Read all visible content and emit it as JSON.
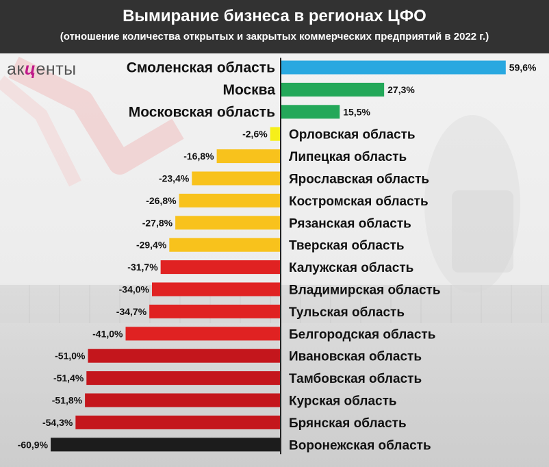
{
  "header": {
    "title": "Вымирание бизнеса в регионах ЦФО",
    "subtitle": "(отношение количества открытых и закрытых коммерческих предприятий в 2022 г.)"
  },
  "logo": {
    "pre": "ак",
    "accent": "ц",
    "post": "енты"
  },
  "colors": {
    "header_bg": "#323232",
    "blue": "#29a8e0",
    "green": "#23a859",
    "yellow": "#f6ef1a",
    "orange": "#f8c21c",
    "red": "#e02222",
    "dark_red": "#c4161c",
    "black": "#1c1c1c",
    "axis": "#222222"
  },
  "chart_data": {
    "type": "bar",
    "orientation": "horizontal",
    "title": "Вымирание бизнеса в регионах ЦФО",
    "subtitle": "(отношение количества открытых и закрытых коммерческих предприятий в 2022 г.)",
    "xlim": [
      -60.9,
      59.6
    ],
    "unit": "%",
    "items": [
      {
        "region": "Смоленская область",
        "value": 59.6,
        "label": "59,6%",
        "color": "blue"
      },
      {
        "region": "Москва",
        "value": 27.3,
        "label": "27,3%",
        "color": "green"
      },
      {
        "region": "Московская область",
        "value": 15.5,
        "label": "15,5%",
        "color": "green"
      },
      {
        "region": "Орловская область",
        "value": -2.6,
        "label": "-2,6%",
        "color": "yellow"
      },
      {
        "region": "Липецкая область",
        "value": -16.8,
        "label": "-16,8%",
        "color": "orange"
      },
      {
        "region": "Ярославская область",
        "value": -23.4,
        "label": "-23,4%",
        "color": "orange"
      },
      {
        "region": "Костромская область",
        "value": -26.8,
        "label": "-26,8%",
        "color": "orange"
      },
      {
        "region": "Рязанская область",
        "value": -27.8,
        "label": "-27,8%",
        "color": "orange"
      },
      {
        "region": "Тверская область",
        "value": -29.4,
        "label": "-29,4%",
        "color": "orange"
      },
      {
        "region": "Калужская область",
        "value": -31.7,
        "label": "-31,7%",
        "color": "red"
      },
      {
        "region": "Владимирская область",
        "value": -34.0,
        "label": "-34,0%",
        "color": "red"
      },
      {
        "region": "Тульская область",
        "value": -34.7,
        "label": "-34,7%",
        "color": "red"
      },
      {
        "region": "Белгородская область",
        "value": -41.0,
        "label": "-41,0%",
        "color": "red"
      },
      {
        "region": "Ивановская область",
        "value": -51.0,
        "label": "-51,0%",
        "color": "dark_red"
      },
      {
        "region": "Тамбовская область",
        "value": -51.4,
        "label": "-51,4%",
        "color": "dark_red"
      },
      {
        "region": "Курская область",
        "value": -51.8,
        "label": "-51,8%",
        "color": "dark_red"
      },
      {
        "region": "Брянская область",
        "value": -54.3,
        "label": "-54,3%",
        "color": "dark_red"
      },
      {
        "region": "Воронежская область",
        "value": -60.9,
        "label": "-60,9%",
        "color": "black"
      }
    ]
  }
}
